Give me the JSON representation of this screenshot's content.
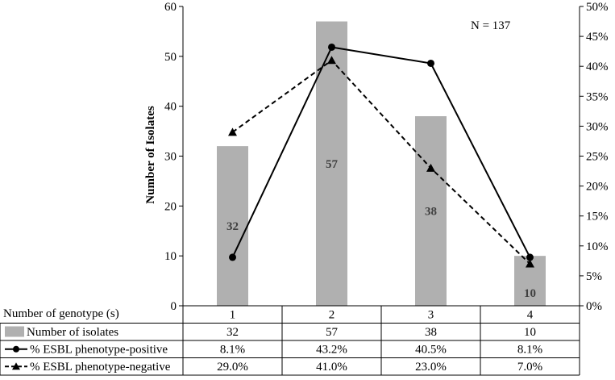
{
  "chart_data": {
    "type": "bar",
    "annotation": "N = 137",
    "ylabel": "Number of Isolates",
    "xlabel": "Number of genotype (s)",
    "categories": [
      "1",
      "2",
      "3",
      "4"
    ],
    "ylim": [
      0,
      60
    ],
    "y_ticks": [
      0,
      10,
      20,
      30,
      40,
      50,
      60
    ],
    "y2lim": [
      0,
      50
    ],
    "y2_ticks": [
      "0%",
      "5%",
      "10%",
      "15%",
      "20%",
      "25%",
      "30%",
      "35%",
      "40%",
      "45%",
      "50%"
    ],
    "y2_tick_values": [
      0,
      5,
      10,
      15,
      20,
      25,
      30,
      35,
      40,
      45,
      50
    ],
    "series": [
      {
        "name": "Number of isolates",
        "kind": "bar",
        "axis": "left",
        "values": [
          32,
          57,
          38,
          10
        ],
        "labels": [
          "32",
          "57",
          "38",
          "10"
        ],
        "color": "#b0b0b0"
      },
      {
        "name": "% ESBL phenotype-positive",
        "kind": "line",
        "axis": "right",
        "marker": "circle",
        "dash": "solid",
        "values": [
          8.1,
          43.2,
          40.5,
          8.1
        ],
        "labels": [
          "8.1%",
          "43.2%",
          "40.5%",
          "8.1%"
        ],
        "color": "#000000"
      },
      {
        "name": "% ESBL phenotype-negative",
        "kind": "line",
        "axis": "right",
        "marker": "triangle",
        "dash": "dashed",
        "values": [
          29.0,
          41.0,
          23.0,
          7.0
        ],
        "labels": [
          "29.0%",
          "41.0%",
          "23.0%",
          "7.0%"
        ],
        "color": "#000000"
      }
    ]
  }
}
